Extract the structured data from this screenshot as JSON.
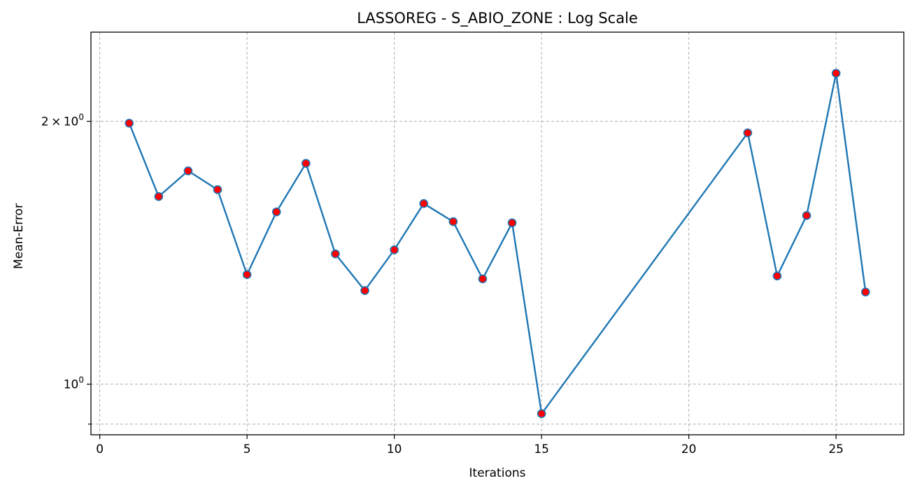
{
  "chart_data": {
    "type": "line",
    "title": "LASSOREG - S_ABIO_ZONE : Log Scale",
    "xlabel": "Iterations",
    "ylabel": "Mean-Error",
    "yscale": "log",
    "xlim": [
      -0.3,
      27.3
    ],
    "ylim": [
      0.875,
      2.53
    ],
    "grid": true,
    "line_color": "#1f77b4",
    "marker_face_color": "#ff0000",
    "marker_edge_color": "#1f77b4",
    "x_ticks": [
      0,
      5,
      10,
      15,
      20,
      25
    ],
    "x_tick_labels": [
      "0",
      "5",
      "10",
      "15",
      "20",
      "25"
    ],
    "y_ticks": [
      {
        "value": 2,
        "mantissa": "2",
        "times": "×",
        "base": "10",
        "exp": "0"
      },
      {
        "value": 1,
        "mantissa": "",
        "times": "",
        "base": "10",
        "exp": "0"
      }
    ],
    "y_minor_ticks": [
      0.9
    ],
    "x": [
      1,
      2,
      3,
      4,
      5,
      6,
      7,
      8,
      9,
      10,
      11,
      12,
      13,
      14,
      15,
      22,
      23,
      24,
      25,
      26
    ],
    "y": [
      1.99,
      1.64,
      1.755,
      1.67,
      1.335,
      1.575,
      1.79,
      1.41,
      1.28,
      1.425,
      1.61,
      1.535,
      1.32,
      1.53,
      0.925,
      1.94,
      1.33,
      1.56,
      2.27,
      1.275
    ]
  }
}
